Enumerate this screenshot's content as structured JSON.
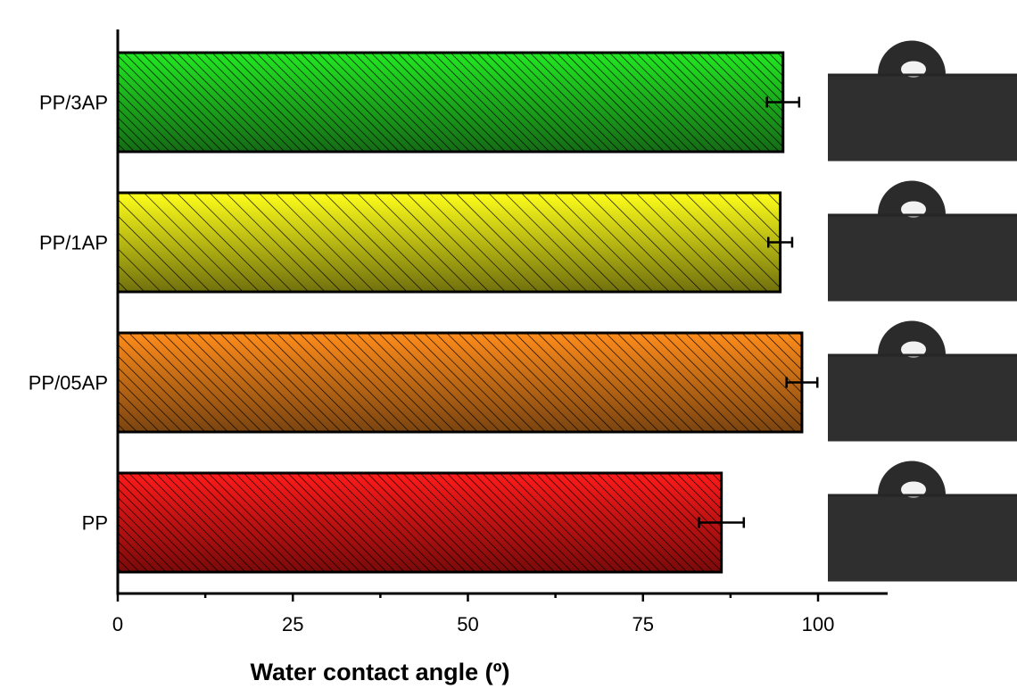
{
  "chart_data": {
    "type": "bar",
    "orientation": "horizontal",
    "categories": [
      "PP",
      "PP/05AP",
      "PP/1AP",
      "PP/3AP"
    ],
    "values": [
      86.2,
      97.7,
      94.6,
      95.0
    ],
    "errors": [
      3.2,
      2.2,
      1.7,
      2.3
    ],
    "xlabel": "Water contact angle (º)",
    "ylabel": "",
    "xlim": [
      0,
      110
    ],
    "xticks": [
      0,
      25,
      50,
      75,
      100
    ],
    "grid": false,
    "colors": {
      "PP": [
        "#ff1a1a",
        "#7a0a0a"
      ],
      "PP/05AP": [
        "#ff8c1a",
        "#7a4410"
      ],
      "PP/1AP": [
        "#ffff1a",
        "#70700e"
      ],
      "PP/3AP": [
        "#22e822",
        "#156b15"
      ]
    },
    "hatch_spacing": {
      "PP": 7,
      "PP/05AP": 9,
      "PP/1AP": 13,
      "PP/3AP": 7
    },
    "insets": [
      "droplet-photo-pp",
      "droplet-photo-pp05ap",
      "droplet-photo-pp1ap",
      "droplet-photo-pp3ap"
    ]
  }
}
